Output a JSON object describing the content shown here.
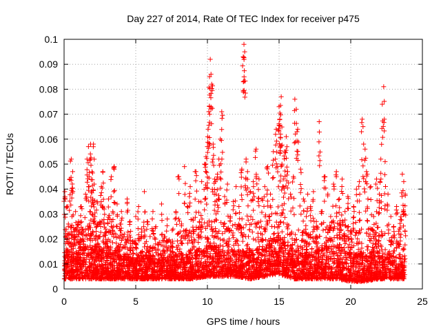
{
  "chart_data": {
    "type": "scatter",
    "title": "Day 227 of 2014, Rate Of TEC Index for receiver p475",
    "xlabel": "GPS time / hours",
    "ylabel": "ROTI / TECUs",
    "xlim": [
      0,
      25
    ],
    "ylim": [
      0,
      0.1
    ],
    "xticks": [
      0,
      5,
      10,
      15,
      20,
      25
    ],
    "xtick_labels": [
      "0",
      "5",
      "10",
      "15",
      "20",
      "25"
    ],
    "yticks": [
      0,
      0.01,
      0.02,
      0.03,
      0.04,
      0.05,
      0.06,
      0.07,
      0.08,
      0.09,
      0.1
    ],
    "ytick_labels": [
      "0",
      "0.01",
      "0.02",
      "0.03",
      "0.04",
      "0.05",
      "0.06",
      "0.07",
      "0.08",
      "0.09",
      "0.1"
    ],
    "grid": true,
    "legend": "none",
    "marker": "plus",
    "color": "#ff0000",
    "series": [
      {
        "name": "ROTI",
        "x": [
          0.05,
          0.1,
          0.2,
          0.25,
          0.3,
          0.4,
          0.45,
          0.5,
          0.55,
          0.6,
          0.7,
          0.8,
          0.9,
          1.0,
          1.1,
          1.2,
          1.3,
          1.4,
          1.5,
          1.6,
          1.7,
          1.75,
          1.8,
          1.85,
          1.9,
          1.95,
          2.0,
          2.05,
          2.1,
          2.15,
          2.2,
          2.3,
          2.4,
          2.5,
          2.6,
          2.7,
          2.8,
          2.9,
          3.0,
          3.1,
          3.2,
          3.3,
          3.4,
          3.5,
          3.6,
          3.7,
          3.8,
          3.9,
          4.0,
          4.2,
          4.4,
          4.6,
          4.8,
          5.0,
          5.2,
          5.4,
          5.6,
          5.8,
          6.0,
          6.2,
          6.4,
          6.6,
          6.8,
          7.0,
          7.2,
          7.4,
          7.6,
          7.8,
          8.0,
          8.2,
          8.4,
          8.6,
          8.8,
          9.0,
          9.2,
          9.4,
          9.6,
          9.8,
          9.9,
          10.0,
          10.05,
          10.1,
          10.15,
          10.2,
          10.3,
          10.4,
          10.5,
          10.6,
          10.7,
          10.8,
          10.9,
          11.0,
          11.2,
          11.4,
          11.6,
          11.8,
          12.0,
          12.2,
          12.4,
          12.5,
          12.55,
          12.6,
          12.7,
          12.8,
          13.0,
          13.2,
          13.4,
          13.6,
          13.8,
          14.0,
          14.2,
          14.4,
          14.6,
          14.8,
          14.9,
          15.0,
          15.05,
          15.1,
          15.15,
          15.2,
          15.3,
          15.4,
          15.5,
          15.6,
          15.8,
          16.0,
          16.1,
          16.2,
          16.3,
          16.5,
          16.7,
          16.9,
          17.0,
          17.2,
          17.4,
          17.6,
          17.8,
          18.0,
          18.2,
          18.4,
          18.6,
          18.8,
          19.0,
          19.2,
          19.4,
          19.6,
          19.8,
          20.0,
          20.2,
          20.4,
          20.6,
          20.8,
          20.9,
          21.0,
          21.1,
          21.2,
          21.4,
          21.6,
          21.8,
          22.0,
          22.1,
          22.2,
          22.3,
          22.4,
          22.6,
          22.8,
          23.0,
          23.2,
          23.4,
          23.5,
          23.6,
          23.7,
          23.8
        ],
        "y": [
          0.039,
          0.021,
          0.033,
          0.015,
          0.026,
          0.044,
          0.018,
          0.052,
          0.029,
          0.047,
          0.023,
          0.031,
          0.014,
          0.027,
          0.019,
          0.033,
          0.024,
          0.016,
          0.038,
          0.052,
          0.057,
          0.045,
          0.031,
          0.058,
          0.039,
          0.047,
          0.036,
          0.058,
          0.042,
          0.029,
          0.021,
          0.035,
          0.018,
          0.027,
          0.041,
          0.047,
          0.032,
          0.024,
          0.019,
          0.036,
          0.028,
          0.045,
          0.031,
          0.049,
          0.022,
          0.034,
          0.017,
          0.026,
          0.031,
          0.022,
          0.036,
          0.027,
          0.019,
          0.029,
          0.033,
          0.024,
          0.039,
          0.027,
          0.021,
          0.031,
          0.025,
          0.018,
          0.034,
          0.021,
          0.028,
          0.016,
          0.024,
          0.031,
          0.045,
          0.026,
          0.049,
          0.033,
          0.041,
          0.028,
          0.047,
          0.035,
          0.043,
          0.05,
          0.053,
          0.057,
          0.064,
          0.071,
          0.085,
          0.092,
          0.082,
          0.058,
          0.044,
          0.038,
          0.046,
          0.052,
          0.06,
          0.071,
          0.037,
          0.042,
          0.029,
          0.035,
          0.041,
          0.033,
          0.048,
          0.093,
          0.098,
          0.095,
          0.052,
          0.047,
          0.039,
          0.043,
          0.056,
          0.044,
          0.036,
          0.041,
          0.049,
          0.038,
          0.055,
          0.064,
          0.049,
          0.073,
          0.068,
          0.062,
          0.077,
          0.05,
          0.044,
          0.055,
          0.061,
          0.047,
          0.038,
          0.045,
          0.076,
          0.072,
          0.064,
          0.048,
          0.036,
          0.029,
          0.038,
          0.033,
          0.039,
          0.027,
          0.067,
          0.031,
          0.045,
          0.038,
          0.029,
          0.042,
          0.047,
          0.036,
          0.044,
          0.031,
          0.037,
          0.022,
          0.033,
          0.04,
          0.043,
          0.068,
          0.058,
          0.056,
          0.047,
          0.036,
          0.041,
          0.029,
          0.044,
          0.038,
          0.052,
          0.074,
          0.081,
          0.051,
          0.038,
          0.029,
          0.025,
          0.033,
          0.024,
          0.029,
          0.046,
          0.043,
          0.038
        ]
      }
    ],
    "band": {
      "description": "dense baseline",
      "x": [
        0,
        1,
        2,
        3,
        4,
        5,
        6,
        7,
        8,
        9,
        10,
        11,
        12,
        13,
        14,
        15,
        16,
        17,
        18,
        19,
        20,
        21,
        22,
        23,
        23.8
      ],
      "low": [
        0.004,
        0.004,
        0.004,
        0.004,
        0.004,
        0.004,
        0.004,
        0.004,
        0.004,
        0.004,
        0.005,
        0.005,
        0.005,
        0.004,
        0.005,
        0.006,
        0.004,
        0.004,
        0.004,
        0.004,
        0.003,
        0.003,
        0.004,
        0.004,
        0.004
      ],
      "high": [
        0.024,
        0.027,
        0.029,
        0.024,
        0.022,
        0.021,
        0.022,
        0.02,
        0.023,
        0.024,
        0.028,
        0.027,
        0.026,
        0.026,
        0.028,
        0.034,
        0.026,
        0.022,
        0.027,
        0.029,
        0.024,
        0.024,
        0.025,
        0.021,
        0.019
      ]
    }
  }
}
